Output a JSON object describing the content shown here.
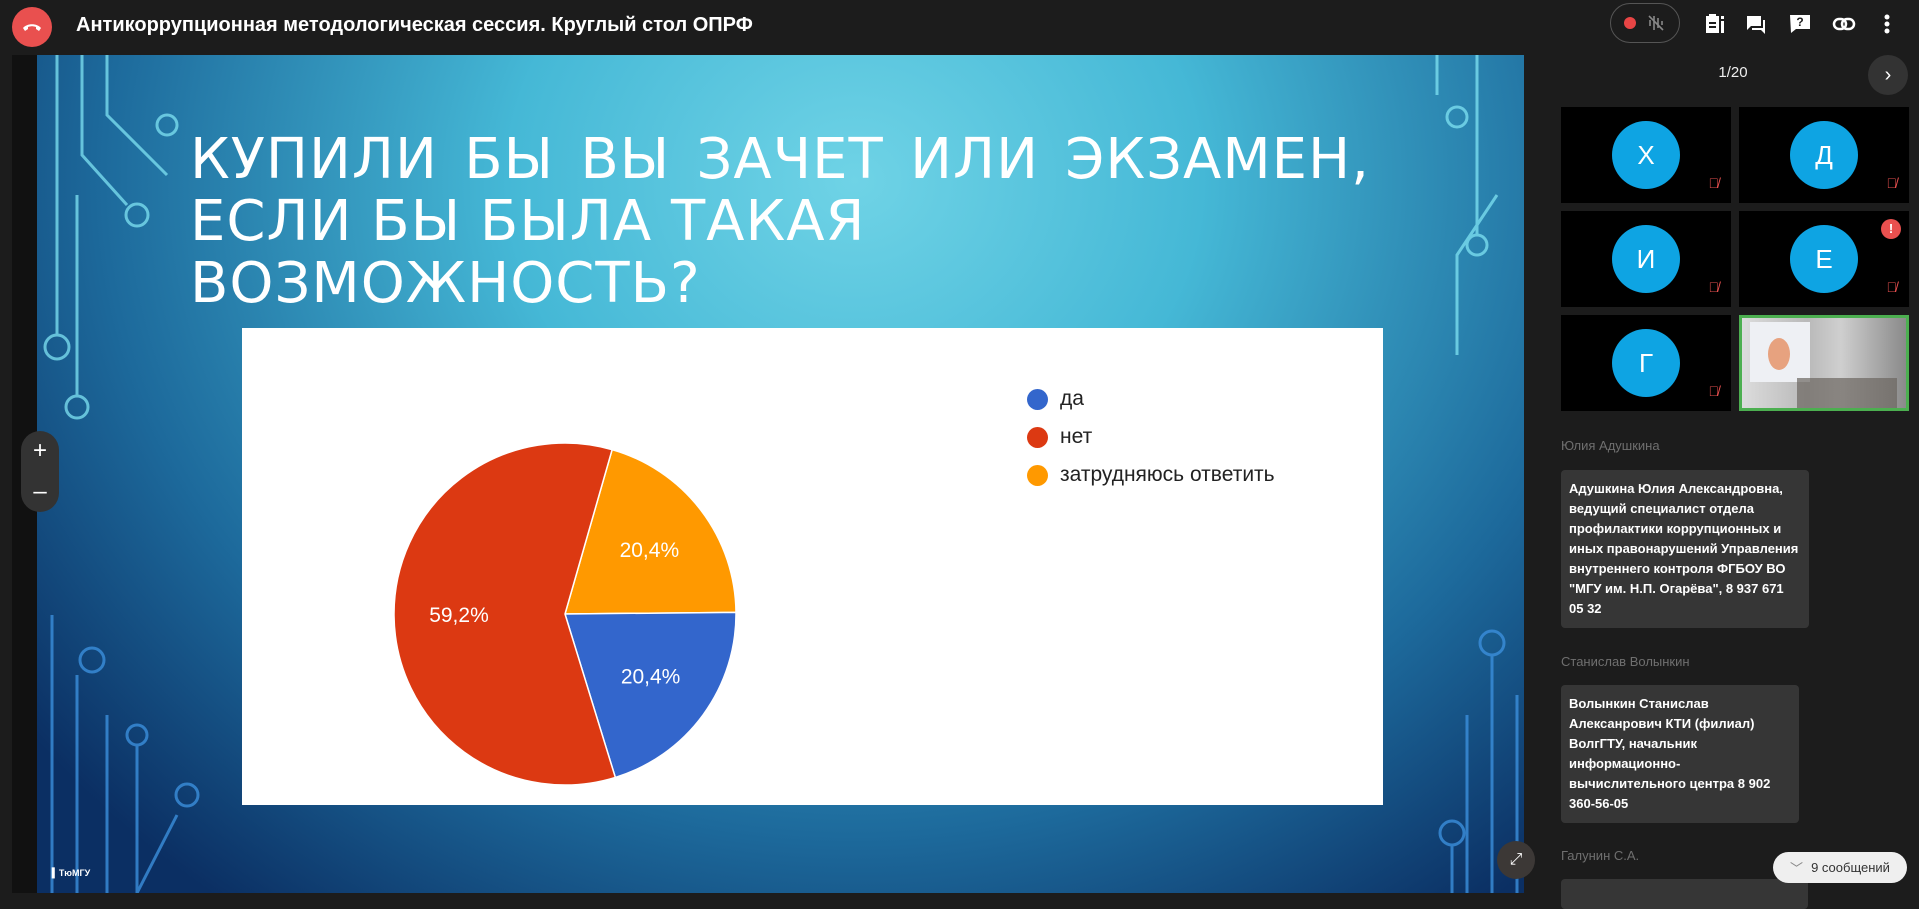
{
  "topbar": {
    "title": "Антикоррупционная методологическая сессия. Круглый стол ОПРФ",
    "hangup_icon": "phone-hangup-icon",
    "record_color": "#e84545"
  },
  "slide": {
    "title_line1": [
      "КУПИЛИ",
      "БЫ",
      "ВЫ",
      "ЗАЧЕТ",
      "ИЛИ",
      "ЭКЗАМЕН,"
    ],
    "title_line2": "ЕСЛИ БЫ БЫЛА ТАКАЯ ВОЗМОЖНОСТЬ?",
    "logo": "ТюмГУ"
  },
  "chart_data": {
    "type": "pie",
    "series": [
      {
        "name": "да",
        "value": 20.4,
        "label": "20,4%",
        "color": "#3366cc"
      },
      {
        "name": "нет",
        "value": 59.2,
        "label": "59,2%",
        "color": "#dc3912"
      },
      {
        "name": "затрудняюсь ответить",
        "value": 20.4,
        "label": "20,4%",
        "color": "#ff9900"
      }
    ],
    "legend": "right"
  },
  "zoom": {
    "plus": "+",
    "minus": "–"
  },
  "panel": {
    "pager": "1/20",
    "participants": [
      {
        "initial": "Х",
        "muted": true
      },
      {
        "initial": "Д",
        "muted": true
      },
      {
        "initial": "И",
        "muted": true
      },
      {
        "initial": "Е",
        "muted": true,
        "warning": "!"
      },
      {
        "initial": "Г",
        "muted": true
      }
    ],
    "chat": [
      {
        "name": "Юлия Адушкина",
        "text": "Адушкина Юлия Александровна, ведущий специалист отдела профилактики коррупционных и иных правонарушений Управления внутреннего контроля ФГБОУ ВО \"МГУ им. Н.П. Огарёва\", 8 937 671 05 32"
      },
      {
        "name": "Станислав Волынкин",
        "text": "Волынкин Станислав Алексанрович КТИ (филиал) ВолгГТУ, начальник информационно-вычислительного центра 8 902 360-56-05"
      },
      {
        "name": "Галунин С.А.",
        "text": ""
      }
    ],
    "new_messages": "9 сообщений"
  }
}
